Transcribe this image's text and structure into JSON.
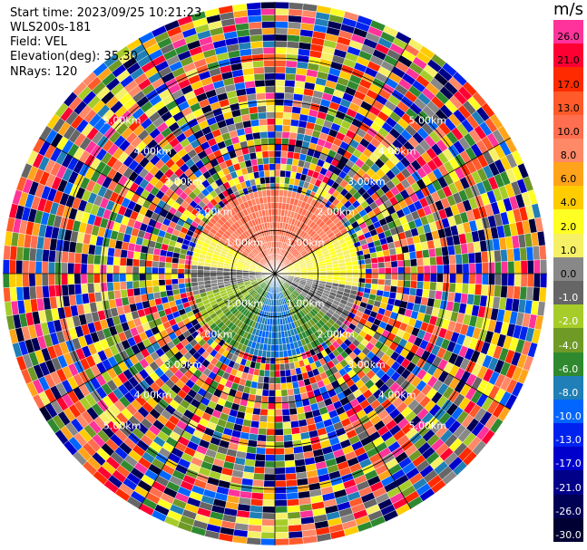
{
  "header": {
    "start_time": "Start time: 2023/09/25 10:21:23",
    "instrument": "WLS200s-181",
    "field": "Field: VEL",
    "elevation": "Elevation(deg): 35.30",
    "nrays": "NRays: 120"
  },
  "colorbar": {
    "title": "m/s",
    "bins": [
      {
        "label": "26.0",
        "color": "#ff3399",
        "text_color": "#000000"
      },
      {
        "label": "21.0",
        "color": "#ff0033",
        "text_color": "#000000"
      },
      {
        "label": "17.0",
        "color": "#ff2a00",
        "text_color": "#000000"
      },
      {
        "label": "13.0",
        "color": "#ff5a2a",
        "text_color": "#000000"
      },
      {
        "label": "10.0",
        "color": "#ff6f4f",
        "text_color": "#000000"
      },
      {
        "label": "8.0",
        "color": "#ff8866",
        "text_color": "#000000"
      },
      {
        "label": "6.0",
        "color": "#ffa41a",
        "text_color": "#000000"
      },
      {
        "label": "4.0",
        "color": "#ffcc00",
        "text_color": "#000000"
      },
      {
        "label": "2.0",
        "color": "#ffff22",
        "text_color": "#000000"
      },
      {
        "label": "1.0",
        "color": "#f6f066",
        "text_color": "#000000"
      },
      {
        "label": "0.0",
        "color": "#888888",
        "text_color": "#000000"
      },
      {
        "label": "-1.0",
        "color": "#666666",
        "text_color": "#ffffff"
      },
      {
        "label": "-2.0",
        "color": "#a6cc2a",
        "text_color": "#ffffff"
      },
      {
        "label": "-4.0",
        "color": "#6f9a26",
        "text_color": "#ffffff"
      },
      {
        "label": "-6.0",
        "color": "#2f8a2f",
        "text_color": "#ffffff"
      },
      {
        "label": "-8.0",
        "color": "#1f7fb6",
        "text_color": "#ffffff"
      },
      {
        "label": "-10.0",
        "color": "#0066ff",
        "text_color": "#ffffff"
      },
      {
        "label": "-13.0",
        "color": "#0022ee",
        "text_color": "#ffffff"
      },
      {
        "label": "-17.0",
        "color": "#0000cc",
        "text_color": "#ffffff"
      },
      {
        "label": "-21.0",
        "color": "#000088",
        "text_color": "#ffffff"
      },
      {
        "label": "-26.0",
        "color": "#000055",
        "text_color": "#ffffff"
      },
      {
        "label": "-30.0",
        "color": "#000033",
        "text_color": "#ffffff"
      }
    ]
  },
  "chart_data": {
    "type": "heatmap",
    "plot_type": "PPI (plan position indicator), polar",
    "field": "VEL",
    "units": "m/s",
    "nrays": 120,
    "elevation_deg": 35.3,
    "range_ring_labels": [
      "1.00km",
      "2.00km",
      "3.00km",
      "4.00km",
      "5.00km"
    ],
    "ring_distances_km": [
      1.0,
      2.0,
      3.0,
      4.0,
      5.0
    ],
    "range_labels_visible": [
      "1.00km",
      "1.00km",
      "1.00km",
      "1.00km",
      "2.00km",
      "2.00km",
      "2.00km",
      "2.00km",
      "3.00km",
      "3.00km",
      "3.00km",
      "3.00km",
      "4.00km",
      "4.00km",
      "4.00km",
      "4.00km",
      "5.00km",
      "5.00km",
      "5.00km",
      "5.00km"
    ],
    "max_range_km": 6.3,
    "valid_data_range_km": 2.0,
    "valid_data_sectors": [
      {
        "azimuth_from_deg": 300,
        "azimuth_to_deg": 60,
        "velocity_ms": 10.0,
        "desc": "north sector, orange-salmon"
      },
      {
        "azimuth_from_deg": 60,
        "azimuth_to_deg": 100,
        "velocity_ms": 2.0,
        "desc": "east, yellow"
      },
      {
        "azimuth_from_deg": 100,
        "azimuth_to_deg": 130,
        "velocity_ms": 0.0,
        "desc": "grey"
      },
      {
        "azimuth_from_deg": 130,
        "azimuth_to_deg": 160,
        "velocity_ms": -4.0,
        "desc": "green"
      },
      {
        "azimuth_from_deg": 160,
        "azimuth_to_deg": 200,
        "velocity_ms": -8.0,
        "desc": "south, blue"
      },
      {
        "azimuth_from_deg": 200,
        "azimuth_to_deg": 230,
        "velocity_ms": -4.0,
        "desc": "green"
      },
      {
        "azimuth_from_deg": 230,
        "azimuth_to_deg": 255,
        "velocity_ms": -2.0,
        "desc": "light green"
      },
      {
        "azimuth_from_deg": 255,
        "azimuth_to_deg": 275,
        "velocity_ms": 0.0,
        "desc": "grey"
      },
      {
        "azimuth_from_deg": 275,
        "azimuth_to_deg": 300,
        "velocity_ms": 2.0,
        "desc": "west, yellow"
      }
    ],
    "outer_region": "noise (random velocities across full scale)"
  }
}
